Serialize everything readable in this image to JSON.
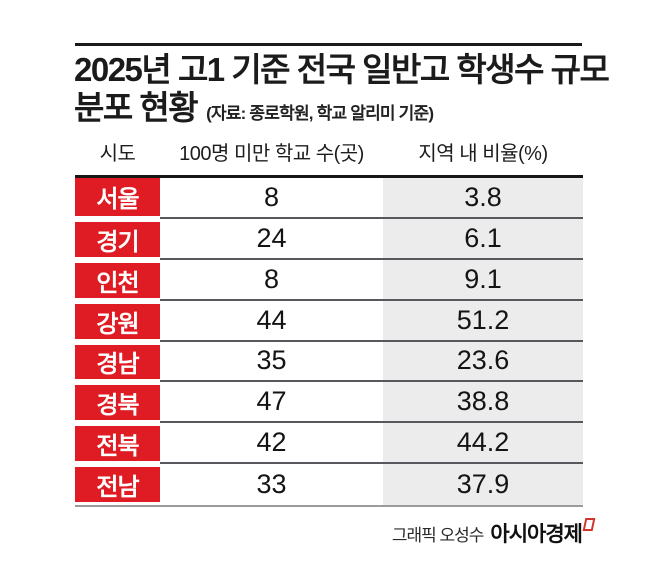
{
  "title": {
    "line1": "2025년 고1 기준 전국 일반고 학생수 규모",
    "line2": "분포 현황",
    "source": "(자료: 종로학원, 학교 알리미 기준)"
  },
  "table": {
    "headers": {
      "region": "시도",
      "count": "100명 미만 학교 수(곳)",
      "ratio": "지역 내 비율(%)"
    },
    "rows": [
      {
        "region": "서울",
        "count": "8",
        "ratio": "3.8"
      },
      {
        "region": "경기",
        "count": "24",
        "ratio": "6.1"
      },
      {
        "region": "인천",
        "count": "8",
        "ratio": "9.1"
      },
      {
        "region": "강원",
        "count": "44",
        "ratio": "51.2"
      },
      {
        "region": "경남",
        "count": "35",
        "ratio": "23.6"
      },
      {
        "region": "경북",
        "count": "47",
        "ratio": "38.8"
      },
      {
        "region": "전북",
        "count": "42",
        "ratio": "44.2"
      },
      {
        "region": "전남",
        "count": "33",
        "ratio": "37.9"
      }
    ]
  },
  "footer": {
    "credit": "그래픽 오성수",
    "brand": "아시아경제",
    "brand_mark_icon": "red-open-square"
  },
  "colors": {
    "accent_red": "#df1c23",
    "ratio_column_bg": "#ececec",
    "rule_black": "#1a1a1a",
    "separator_gray": "#58585c",
    "brand_mark_red": "#cf352c"
  },
  "chart_data": {
    "type": "table",
    "title": "2025년 고1 기준 전국 일반고 학생수 규모 분포 현황",
    "source": "자료: 종로학원, 학교 알리미 기준",
    "columns": [
      "시도",
      "100명 미만 학교 수(곳)",
      "지역 내 비율(%)"
    ],
    "categories": [
      "서울",
      "경기",
      "인천",
      "강원",
      "경남",
      "경북",
      "전북",
      "전남"
    ],
    "series": [
      {
        "name": "100명 미만 학교 수(곳)",
        "values": [
          8,
          24,
          8,
          44,
          35,
          47,
          42,
          33
        ]
      },
      {
        "name": "지역 내 비율(%)",
        "values": [
          3.8,
          6.1,
          9.1,
          51.2,
          23.6,
          38.8,
          44.2,
          37.9
        ]
      }
    ],
    "legend_position": "none",
    "grid": false
  }
}
